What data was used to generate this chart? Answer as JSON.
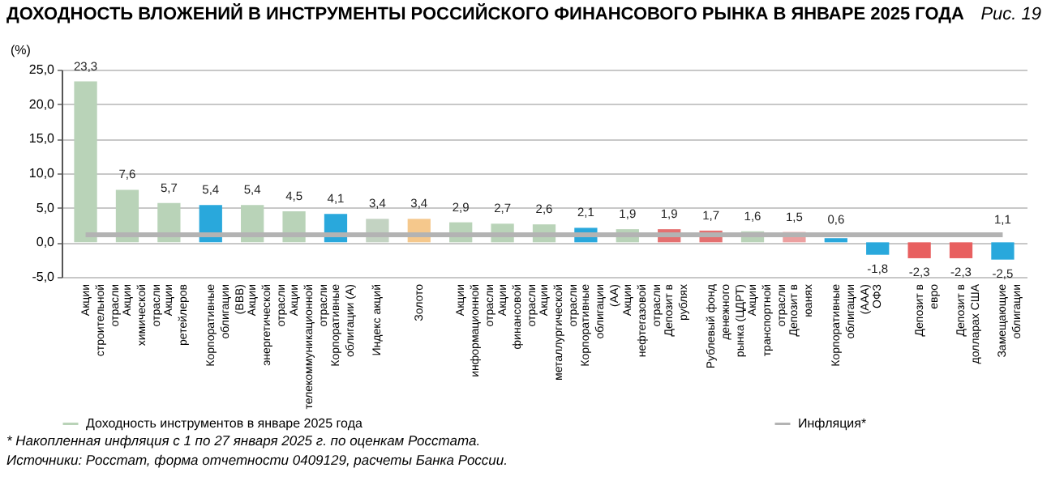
{
  "chart_data": {
    "type": "bar",
    "title": "ДОХОДНОСТЬ ВЛОЖЕНИЙ В ИНСТРУМЕНТЫ РОССИЙСКОГО ФИНАНСОВОГО РЫНКА В ЯНВАРЕ 2025 ГОДА",
    "ylabel": "(%)",
    "annotations": [
      "Рис. 19",
      "* Накопленная инфляция с 1 по 27 января 2025 г. по оценкам Росстата.",
      "Источники: Росстат, форма отчетности 0409129, расчеты Банка России."
    ],
    "categories": [
      "Акции строительной отрасли",
      "Акции химической отрасли",
      "Акции ретейлеров",
      "Корпоративные облигации (BBB)",
      "Акции энергетической отрасли",
      "Акции телекоммуникационной отрасли",
      "Корпоративные облигации (A)",
      "Индекс акций",
      "Золото",
      "Акции информационной отрасли",
      "Акции финансовой отрасли",
      "Акции металлургической отрасли",
      "Корпоративные облигации (AA)",
      "Акции нефтегазовой отрасли",
      "Депозит в рублях",
      "Рублевый фонд денежного рынка (ЦДРТ)",
      "Акции транспортной отрасли",
      "Депозит в юанях",
      "Корпоративные облигации (AAA)",
      "ОФЗ",
      "Депозит в евро",
      "Депозит в долларах США",
      "Замещающие облигации"
    ],
    "series": [
      {
        "name": "Доходность инструментов в январе 2025 года",
        "color": "#b9d3b8",
        "colors": [
          "#b9d3b8",
          "#b9d3b8",
          "#b9d3b8",
          "#29a8dc",
          "#b9d3b8",
          "#b9d3b8",
          "#29a8dc",
          "#c3d3c2",
          "#f5c88c",
          "#b9d3b8",
          "#b9d3b8",
          "#b9d3b8",
          "#29a8dc",
          "#b9d3b8",
          "#e47070",
          "#e47070",
          "#b9d3b8",
          "#eca0a0",
          "#29a8dc",
          "#29a8dc",
          "#e86060",
          "#e86060",
          "#29a8dc"
        ],
        "values": [
          23.3,
          7.6,
          5.7,
          5.4,
          5.4,
          4.5,
          4.1,
          3.4,
          3.4,
          2.9,
          2.7,
          2.6,
          2.1,
          1.9,
          1.9,
          1.7,
          1.6,
          1.5,
          0.6,
          -1.8,
          -2.3,
          -2.3,
          -2.5
        ],
        "value_labels": [
          "23,3",
          "7,6",
          "5,7",
          "5,4",
          "5,4",
          "4,5",
          "4,1",
          "3,4",
          "3,4",
          "2,9",
          "2,7",
          "2,6",
          "2,1",
          "1,9",
          "1,9",
          "1,7",
          "1,6",
          "1,5",
          "0,6",
          "-1,8",
          "-2,3",
          "-2,3",
          "-2,5"
        ]
      },
      {
        "name": "Инфляция*",
        "type": "line",
        "color": "#b3b3b3",
        "values": [
          1.1,
          1.1,
          1.1,
          1.1,
          1.1,
          1.1,
          1.1,
          1.1,
          1.1,
          1.1,
          1.1,
          1.1,
          1.1,
          1.1,
          1.1,
          1.1,
          1.1,
          1.1,
          1.1,
          1.1,
          1.1,
          1.1,
          1.1
        ],
        "value_labels": [
          null,
          null,
          null,
          null,
          null,
          null,
          null,
          null,
          null,
          null,
          null,
          null,
          null,
          null,
          null,
          null,
          null,
          null,
          null,
          null,
          null,
          null,
          "1,1"
        ]
      }
    ],
    "ylim": [
      -5,
      25
    ],
    "yticks": [
      {
        "value": -5,
        "label": "-5,0"
      },
      {
        "value": 0,
        "label": "0,0"
      },
      {
        "value": 5,
        "label": "5,0"
      },
      {
        "value": 10,
        "label": "10,0"
      },
      {
        "value": 15,
        "label": "15,0"
      },
      {
        "value": 20,
        "label": "20,0"
      },
      {
        "value": 25,
        "label": "25,0"
      }
    ],
    "grid": "y",
    "legend": "bottom"
  }
}
